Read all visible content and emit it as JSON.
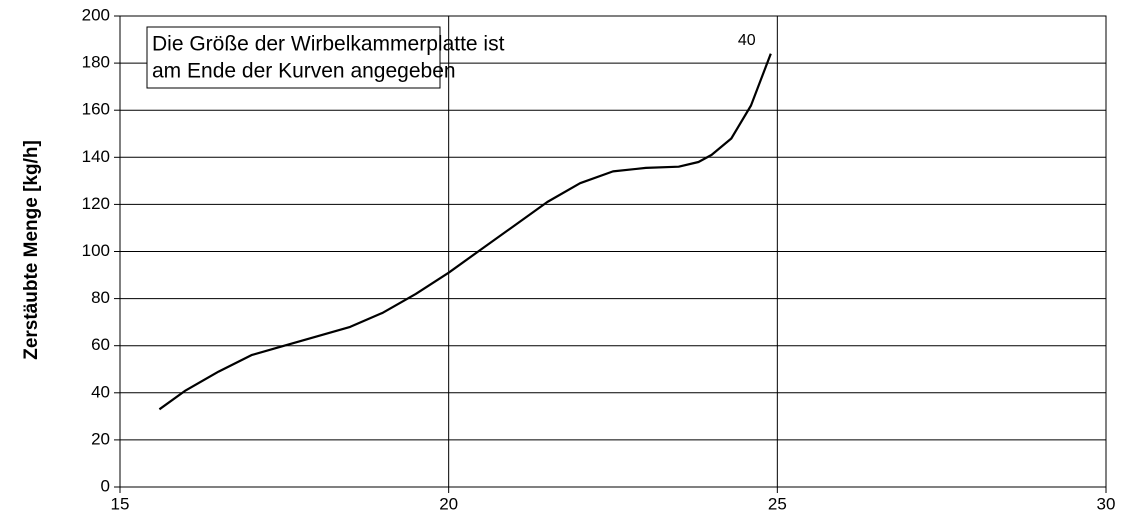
{
  "chart_data": {
    "type": "line",
    "ylabel": "Zerstäubte Menge [kg/h]",
    "annotation": [
      "Die Größe der Wirbelkammerplatte ist",
      "am Ende der Kurven angegeben"
    ],
    "x": [
      15.6,
      16,
      16.5,
      17,
      17.5,
      18,
      18.5,
      19,
      19.5,
      20,
      20.5,
      21,
      21.5,
      22,
      22.5,
      23,
      23.5,
      23.8,
      24,
      24.3,
      24.6,
      24.9
    ],
    "series": [
      {
        "name": "40",
        "color": "#000000",
        "values": [
          33,
          41,
          49,
          56,
          60,
          64,
          68,
          74,
          82,
          91,
          101,
          111,
          121,
          129,
          134,
          135.5,
          136,
          138,
          141,
          148,
          162,
          184
        ]
      }
    ],
    "xlim": [
      15,
      30
    ],
    "xticks": [
      15,
      20,
      25,
      30
    ],
    "ylim": [
      0,
      200
    ],
    "yticks": [
      0,
      20,
      40,
      60,
      80,
      100,
      120,
      140,
      160,
      180,
      200
    ],
    "grid": true
  }
}
